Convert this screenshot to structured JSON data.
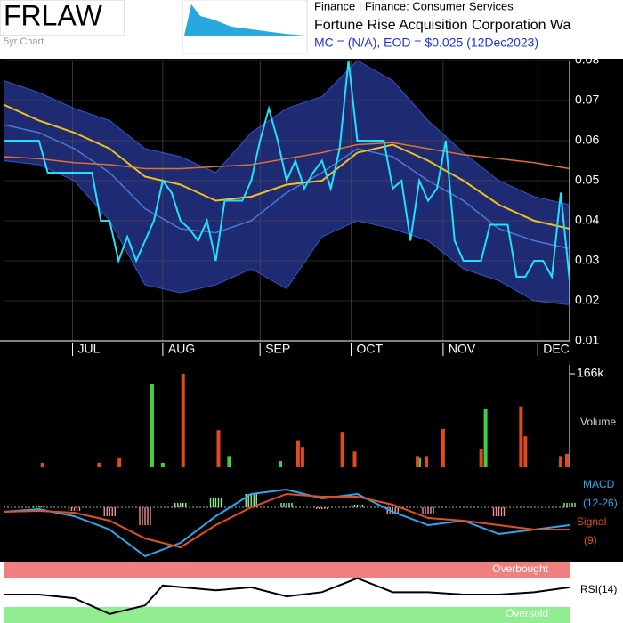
{
  "header": {
    "ticker": "FRLAW",
    "subtitle": "5yr Chart",
    "sector": "Finance | Finance: Consumer Services",
    "name": "Fortune Rise Acquisition Corporation Wa",
    "info": "MC = (N/A), EOD = $0.025 (12Dec2023)"
  },
  "chart_data": [
    {
      "type": "line",
      "xlim": [
        0,
        64
      ],
      "ylim": [
        0.01,
        0.08
      ],
      "yticks": [
        0.01,
        0.02,
        0.03,
        0.04,
        0.05,
        0.06,
        0.07,
        0.08
      ],
      "xticks": [
        {
          "value": 7.8,
          "label": "JUL"
        },
        {
          "value": 18,
          "label": "AUG"
        },
        {
          "value": 29,
          "label": "SEP"
        },
        {
          "value": 39.3,
          "label": "OCT"
        },
        {
          "value": 49.7,
          "label": "NOV"
        },
        {
          "value": 60.4,
          "label": "DEC"
        }
      ],
      "grid": true,
      "band_upper": {
        "color": "#3553c8",
        "x": [
          0,
          4,
          8,
          12,
          16,
          20,
          24,
          28,
          32,
          36,
          40,
          44,
          48,
          52,
          56,
          60,
          64
        ],
        "values": [
          0.075,
          0.072,
          0.068,
          0.065,
          0.058,
          0.056,
          0.052,
          0.062,
          0.068,
          0.071,
          0.08,
          0.075,
          0.065,
          0.057,
          0.05,
          0.046,
          0.044
        ]
      },
      "band_lower": {
        "color": "#3553c8",
        "x": [
          0,
          4,
          8,
          12,
          16,
          20,
          24,
          28,
          32,
          36,
          40,
          44,
          48,
          52,
          56,
          60,
          64
        ],
        "values": [
          0.055,
          0.054,
          0.05,
          0.04,
          0.024,
          0.022,
          0.024,
          0.028,
          0.023,
          0.036,
          0.04,
          0.038,
          0.035,
          0.028,
          0.025,
          0.02,
          0.019
        ]
      },
      "band_fill": "#1e2a72",
      "ma_mid": {
        "color": "#4a78d8",
        "x": [
          0,
          4,
          8,
          12,
          16,
          20,
          24,
          28,
          32,
          36,
          40,
          44,
          48,
          52,
          56,
          60,
          64
        ],
        "values": [
          0.064,
          0.062,
          0.058,
          0.052,
          0.043,
          0.038,
          0.037,
          0.04,
          0.047,
          0.052,
          0.058,
          0.056,
          0.05,
          0.045,
          0.038,
          0.035,
          0.033
        ]
      },
      "ma_long": {
        "color": "#e0702a",
        "x": [
          0,
          4,
          8,
          12,
          16,
          20,
          24,
          28,
          32,
          36,
          40,
          44,
          48,
          52,
          56,
          60,
          64
        ],
        "values": [
          0.056,
          0.0555,
          0.0545,
          0.054,
          0.053,
          0.053,
          0.0535,
          0.054,
          0.0555,
          0.057,
          0.059,
          0.0595,
          0.058,
          0.0565,
          0.0555,
          0.0545,
          0.053
        ]
      },
      "ma_short": {
        "color": "#f0c020",
        "x": [
          0,
          4,
          8,
          12,
          16,
          20,
          24,
          28,
          32,
          36,
          40,
          44,
          48,
          52,
          56,
          60,
          64
        ],
        "values": [
          0.069,
          0.065,
          0.062,
          0.058,
          0.051,
          0.049,
          0.045,
          0.046,
          0.049,
          0.05,
          0.057,
          0.059,
          0.055,
          0.05,
          0.044,
          0.04,
          0.038
        ]
      },
      "price": {
        "color": "#20e0ff",
        "x": [
          0,
          1,
          2,
          3,
          4,
          5,
          6,
          7,
          8,
          9,
          10,
          11,
          12,
          13,
          14,
          15,
          16,
          17,
          18,
          19,
          20,
          21,
          22,
          23,
          24,
          25,
          26,
          27,
          28,
          29,
          30,
          31,
          32,
          33,
          34,
          35,
          36,
          37,
          38,
          39,
          40,
          41,
          42,
          43,
          44,
          45,
          46,
          47,
          48,
          49,
          50,
          51,
          52,
          53,
          54,
          55,
          56,
          57,
          58,
          59,
          60,
          61,
          62,
          63,
          64
        ],
        "values": [
          0.06,
          0.06,
          0.06,
          0.06,
          0.06,
          0.052,
          0.052,
          0.052,
          0.052,
          0.052,
          0.052,
          0.04,
          0.04,
          0.03,
          0.036,
          0.03,
          0.035,
          0.04,
          0.05,
          0.047,
          0.04,
          0.038,
          0.035,
          0.04,
          0.03,
          0.045,
          0.045,
          0.045,
          0.05,
          0.06,
          0.068,
          0.06,
          0.05,
          0.055,
          0.048,
          0.052,
          0.055,
          0.048,
          0.058,
          0.08,
          0.06,
          0.06,
          0.06,
          0.06,
          0.048,
          0.05,
          0.035,
          0.05,
          0.045,
          0.048,
          0.06,
          0.035,
          0.03,
          0.03,
          0.03,
          0.039,
          0.039,
          0.039,
          0.026,
          0.026,
          0.03,
          0.03,
          0.026,
          0.047,
          0.025
        ]
      }
    },
    {
      "type": "bar",
      "xlim": [
        0,
        64
      ],
      "ylim": [
        0,
        166000
      ],
      "yticks": [
        {
          "value": 166000,
          "label": "166k"
        }
      ],
      "label": "Volume",
      "series": [
        {
          "color": "#40d040",
          "x": [
            16.8,
            18,
            25.5,
            31.3,
            47,
            54.5
          ],
          "values": [
            147000,
            8000,
            20000,
            11000,
            16000,
            103000
          ]
        },
        {
          "color": "#e04a20",
          "x": [
            4.4,
            10.8,
            13.1,
            20.3,
            24.3,
            33.3,
            33.8,
            38.3,
            39.7,
            46.8,
            47.8,
            49.7,
            54,
            58.5,
            59,
            63,
            63.7
          ],
          "values": [
            8000,
            8000,
            16000,
            166000,
            66000,
            48000,
            36000,
            63000,
            28000,
            20000,
            20000,
            68000,
            32000,
            108000,
            55000,
            20000,
            24000
          ]
        }
      ]
    },
    {
      "type": "line",
      "xlim": [
        0,
        64
      ],
      "ylim": [
        -0.006,
        0.0035
      ],
      "labels": [
        "MACD",
        "(12-26)",
        "Signal",
        "(9)"
      ],
      "series": [
        {
          "color": "#2aa8f0",
          "x": [
            0,
            4,
            8,
            12,
            16,
            20,
            24,
            28,
            32,
            36,
            40,
            44,
            48,
            52,
            56,
            60,
            64
          ],
          "values": [
            -0.0005,
            -0.0002,
            -0.001,
            -0.0025,
            -0.0055,
            -0.004,
            -0.001,
            0.0015,
            0.002,
            0.001,
            0.0015,
            -0.0005,
            -0.002,
            -0.0015,
            -0.003,
            -0.0025,
            -0.002
          ]
        },
        {
          "color": "#e05020",
          "x": [
            0,
            4,
            8,
            12,
            16,
            20,
            24,
            28,
            32,
            36,
            40,
            44,
            48,
            52,
            56,
            60,
            64
          ],
          "values": [
            -0.0005,
            -0.0004,
            -0.0006,
            -0.0015,
            -0.0035,
            -0.0045,
            -0.002,
            0,
            0.0015,
            0.0012,
            0.0012,
            0.0003,
            -0.0012,
            -0.0015,
            -0.002,
            -0.0025,
            -0.0025
          ]
        }
      ],
      "histogram": {
        "colors": [
          "#90f090",
          "#f09090"
        ],
        "x": [
          0,
          4,
          8,
          12,
          16,
          20,
          24,
          28,
          32,
          36,
          40,
          44,
          48,
          52,
          56,
          60,
          64
        ],
        "values": [
          0,
          0.0002,
          -0.0004,
          -0.001,
          -0.002,
          0.0005,
          0.001,
          0.0015,
          0.0005,
          -0.0002,
          0.0003,
          -0.0008,
          -0.0008,
          0,
          -0.001,
          0,
          0.0005
        ]
      }
    },
    {
      "type": "line",
      "xlim": [
        0,
        64
      ],
      "ylim": [
        0,
        100
      ],
      "labels": [
        "Overbought",
        "Oversold",
        "RSI(14)"
      ],
      "series": [
        {
          "color": "#000000",
          "x": [
            0,
            4,
            8,
            12,
            16,
            18,
            24,
            28,
            32,
            36,
            40,
            44,
            48,
            52,
            56,
            60,
            64
          ],
          "values": [
            47,
            47,
            41,
            15,
            29,
            62,
            54,
            59,
            44,
            51,
            74,
            51,
            51,
            47,
            47,
            51,
            59
          ]
        }
      ]
    }
  ]
}
